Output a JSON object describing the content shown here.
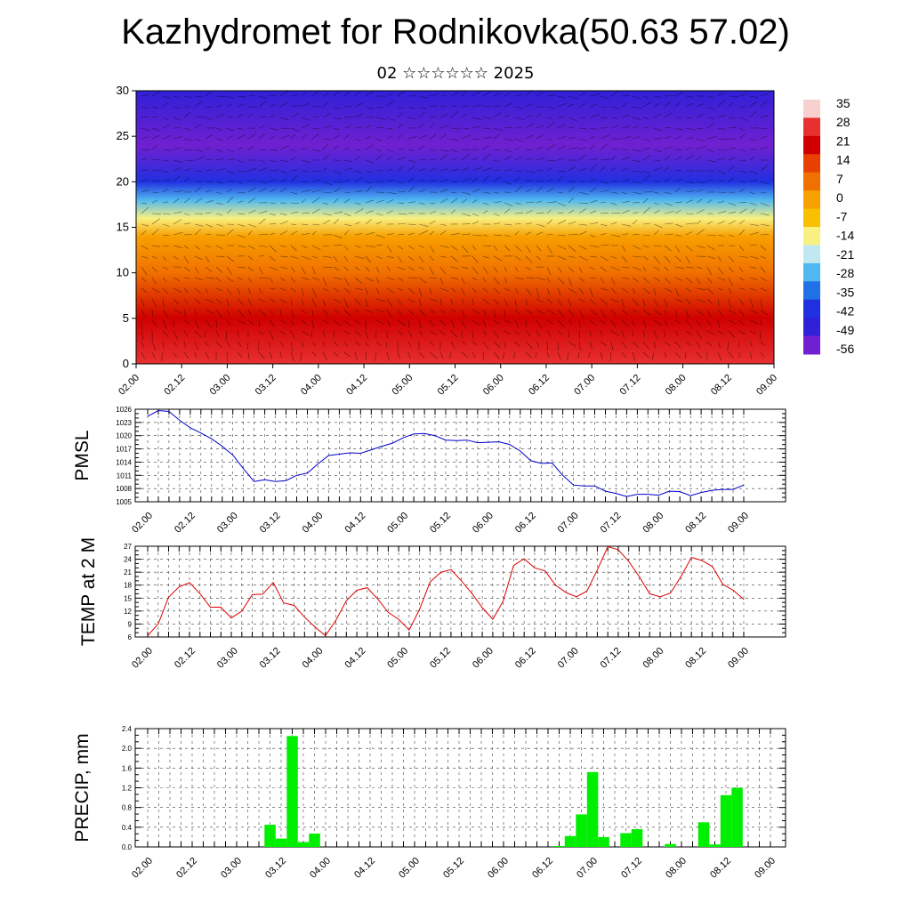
{
  "title": "Kazhydromet for Rodnikovka(50.63 57.02)",
  "subtitle": "02 ☆☆☆☆☆☆ 2025",
  "chart_data": [
    {
      "type": "heatmap",
      "name": "vertical cross-section",
      "x_ticks": [
        "02.00",
        "02.12",
        "03.00",
        "03.12",
        "04.00",
        "04.12",
        "05.00",
        "05.12",
        "06.00",
        "06.12",
        "07.00",
        "07.12",
        "08.00",
        "08.12",
        "09.00"
      ],
      "y_ticks": [
        "0",
        "5",
        "10",
        "15",
        "20",
        "25",
        "30"
      ],
      "ylim": [
        0,
        30
      ],
      "colorbar": {
        "labels": [
          "35",
          "28",
          "21",
          "14",
          "7",
          "0",
          "-7",
          "-14",
          "-21",
          "-28",
          "-35",
          "-42",
          "-49",
          "-56"
        ],
        "values": [
          35,
          28,
          21,
          14,
          7,
          0,
          -7,
          -14,
          -21,
          -28,
          -35,
          -42,
          -49,
          -56
        ],
        "colors": [
          "#f7d0d0",
          "#e83030",
          "#d00000",
          "#e84000",
          "#f07000",
          "#f8a000",
          "#f8c000",
          "#f8f080",
          "#c0e8f0",
          "#50b8f0",
          "#2070e8",
          "#2030e0",
          "#3020d8",
          "#7020d0"
        ]
      },
      "profile": [
        {
          "level": 0,
          "value": 28
        },
        {
          "level": 5,
          "value": 21
        },
        {
          "level": 10,
          "value": 10
        },
        {
          "level": 14,
          "value": 0
        },
        {
          "level": 16,
          "value": -14
        },
        {
          "level": 18,
          "value": -28
        },
        {
          "level": 20,
          "value": -42
        },
        {
          "level": 24,
          "value": -56
        },
        {
          "level": 30,
          "value": -49
        }
      ]
    },
    {
      "type": "line",
      "ylabel": "PMSL",
      "x_ticks": [
        "02.00",
        "02.12",
        "03.00",
        "03.12",
        "04.00",
        "04.12",
        "05.00",
        "05.12",
        "06.00",
        "06.12",
        "07.00",
        "07.12",
        "08.00",
        "08.12",
        "09.00"
      ],
      "y_ticks": [
        "1005",
        "1008",
        "1011",
        "1014",
        "1017",
        "1020",
        "1023",
        "1026"
      ],
      "ylim": [
        1005,
        1026
      ],
      "color": "#0000cc",
      "values": [
        1024.4,
        1025.7,
        1025.5,
        1023.5,
        1021.8,
        1020.6,
        1019.3,
        1017.6,
        1015.6,
        1012.5,
        1009.6,
        1010.0,
        1009.6,
        1009.8,
        1011.0,
        1011.5,
        1013.6,
        1015.5,
        1015.8,
        1016.1,
        1016.0,
        1016.8,
        1017.6,
        1018.3,
        1019.5,
        1020.4,
        1020.5,
        1020.0,
        1019.0,
        1018.9,
        1019.0,
        1018.4,
        1018.5,
        1018.6,
        1018.0,
        1016.5,
        1014.3,
        1013.7,
        1013.8,
        1011.0,
        1008.8,
        1008.6,
        1008.6,
        1007.4,
        1006.9,
        1006.2,
        1006.7,
        1006.7,
        1006.5,
        1007.4,
        1007.3,
        1006.4,
        1007.1,
        1007.6,
        1007.8,
        1007.8,
        1008.8
      ]
    },
    {
      "type": "line",
      "ylabel": "TEMP at 2 M",
      "x_ticks": [
        "02.00",
        "02.12",
        "03.00",
        "03.12",
        "04.00",
        "04.12",
        "05.00",
        "05.12",
        "06.00",
        "06.12",
        "07.00",
        "07.12",
        "08.00",
        "08.12",
        "09.00"
      ],
      "y_ticks": [
        "6",
        "9",
        "12",
        "15",
        "18",
        "21",
        "24",
        "27"
      ],
      "ylim": [
        6,
        27
      ],
      "color": "#dd0000",
      "values": [
        6.3,
        9.0,
        15.2,
        17.6,
        18.6,
        16.0,
        12.9,
        12.9,
        10.4,
        12.0,
        15.8,
        15.9,
        18.6,
        13.9,
        13.3,
        10.6,
        8.3,
        6.3,
        9.9,
        14.4,
        16.8,
        17.4,
        14.8,
        11.7,
        10.1,
        7.6,
        12.4,
        18.7,
        20.9,
        21.6,
        19.0,
        16.1,
        12.8,
        10.1,
        14.3,
        22.6,
        24.1,
        22.0,
        21.3,
        18.0,
        16.3,
        15.3,
        16.6,
        21.5,
        26.9,
        26.2,
        23.5,
        20.0,
        16.0,
        15.3,
        16.2,
        20.0,
        24.4,
        23.7,
        22.3,
        18.2,
        16.8,
        14.7
      ]
    },
    {
      "type": "bar",
      "ylabel": "PRECIP, mm",
      "x_ticks": [
        "02.00",
        "02.12",
        "03.00",
        "03.12",
        "04.00",
        "04.12",
        "05.00",
        "05.12",
        "06.00",
        "06.12",
        "07.00",
        "07.12",
        "08.00",
        "08.12",
        "09.00"
      ],
      "y_ticks": [
        "0.0",
        "0.4",
        "0.8",
        "1.2",
        "1.6",
        "2.0",
        "2.4"
      ],
      "ylim": [
        0,
        2.4
      ],
      "color": "#00ee00",
      "values": [
        0,
        0,
        0,
        0,
        0,
        0,
        0,
        0,
        0,
        0,
        0,
        0.45,
        0.17,
        2.25,
        0.1,
        0.27,
        0,
        0,
        0,
        0,
        0,
        0,
        0,
        0,
        0,
        0,
        0,
        0,
        0,
        0,
        0,
        0,
        0,
        0,
        0,
        0,
        0,
        0.02,
        0.22,
        0.66,
        1.52,
        0.2,
        0,
        0.28,
        0.36,
        0,
        0,
        0.06,
        0,
        0,
        0.5,
        0.05,
        1.05,
        1.2,
        0,
        0,
        0
      ]
    }
  ]
}
